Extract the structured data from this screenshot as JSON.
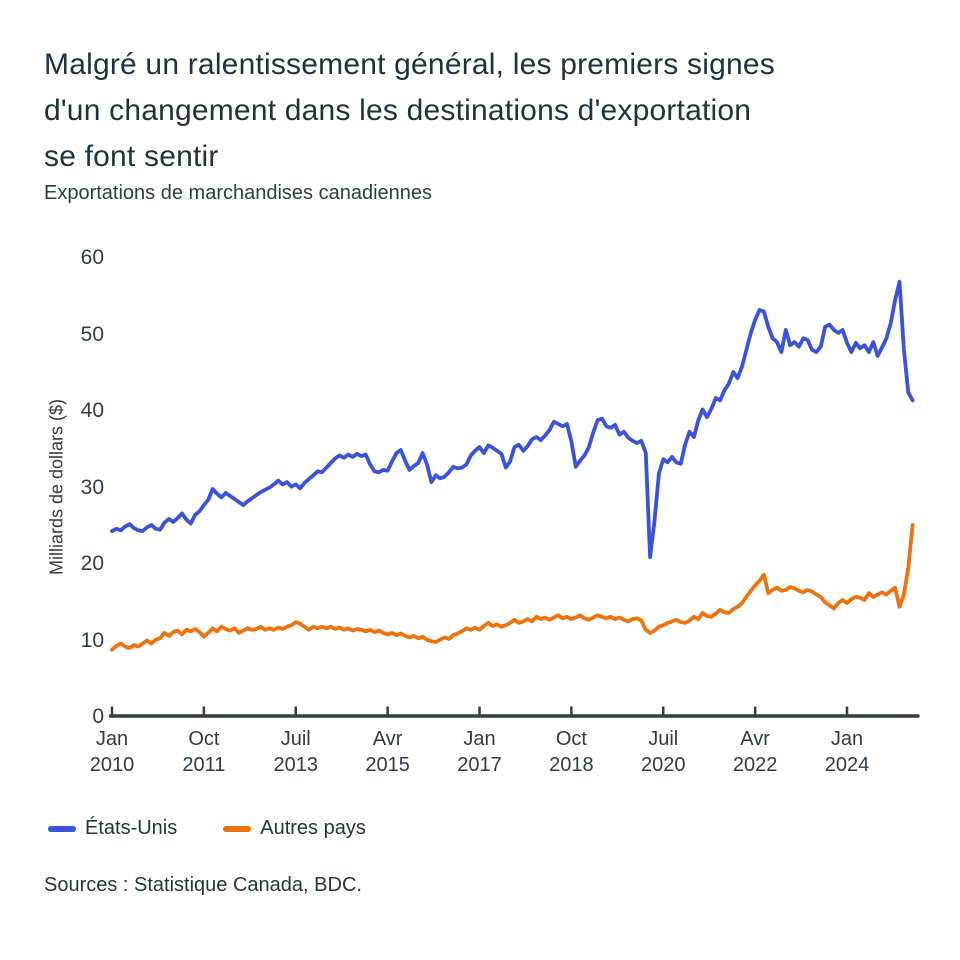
{
  "header": {
    "title_lines": [
      "Malgré un ralentissement général, les premiers signes",
      "d'un changement dans les destinations d'exportation",
      "se font sentir"
    ],
    "subtitle": "Exportations de marchandises canadiennes"
  },
  "chart_data": {
    "type": "line",
    "title": "Malgré un ralentissement général, les premiers signes d'un changement dans les destinations d'exportation se font sentir",
    "subtitle": "Exportations de marchandises canadiennes",
    "ylabel": "Milliards de dollars ($)",
    "xlabel": "",
    "ylim": [
      0,
      60
    ],
    "y_ticks": [
      0,
      10,
      20,
      30,
      40,
      50,
      60
    ],
    "grid": false,
    "legend_position": "bottom-left",
    "x_frequency": "monthly",
    "x_start": "Jan 2010",
    "x_end": "Avr 2025",
    "x_tick_month_indices": [
      0,
      21,
      42,
      63,
      84,
      105,
      126,
      147,
      168
    ],
    "x_tick_labels": [
      [
        "Jan",
        "2010"
      ],
      [
        "Oct",
        "2011"
      ],
      [
        "Juil",
        "2013"
      ],
      [
        "Avr",
        "2015"
      ],
      [
        "Jan",
        "2017"
      ],
      [
        "Oct",
        "2018"
      ],
      [
        "Juil",
        "2020"
      ],
      [
        "Avr",
        "2022"
      ],
      [
        "Jan",
        "2024"
      ]
    ],
    "series": [
      {
        "name": "États-Unis",
        "color": "#3A53D9",
        "values": [
          24.3,
          24.6,
          24.4,
          24.9,
          25.2,
          24.7,
          24.4,
          24.3,
          24.8,
          25.1,
          24.6,
          24.5,
          25.4,
          25.9,
          25.5,
          26.0,
          26.6,
          25.8,
          25.3,
          26.4,
          26.9,
          27.7,
          28.4,
          29.8,
          29.2,
          28.7,
          29.3,
          28.9,
          28.5,
          28.1,
          27.7,
          28.2,
          28.6,
          29.0,
          29.4,
          29.7,
          30.0,
          30.4,
          30.9,
          30.4,
          30.7,
          30.1,
          30.4,
          29.9,
          30.6,
          31.1,
          31.6,
          32.1,
          32.0,
          32.6,
          33.2,
          33.8,
          34.2,
          33.9,
          34.3,
          34.0,
          34.4,
          34.1,
          34.3,
          33.0,
          32.1,
          32.0,
          32.3,
          32.2,
          33.4,
          34.5,
          34.9,
          33.5,
          32.3,
          32.8,
          33.2,
          34.5,
          33.0,
          30.7,
          31.6,
          31.2,
          31.4,
          32.0,
          32.7,
          32.5,
          32.6,
          33.0,
          34.2,
          34.8,
          35.3,
          34.5,
          35.5,
          35.2,
          34.8,
          34.4,
          32.6,
          33.4,
          35.3,
          35.6,
          34.8,
          35.4,
          36.3,
          36.6,
          36.2,
          36.8,
          37.5,
          38.6,
          38.3,
          38.0,
          38.3,
          36.0,
          32.7,
          33.5,
          34.2,
          35.3,
          37.2,
          38.8,
          39.0,
          38.0,
          37.8,
          38.2,
          36.9,
          37.3,
          36.5,
          36.1,
          35.8,
          36.1,
          34.5,
          20.9,
          25.6,
          31.8,
          33.7,
          33.3,
          34.0,
          33.3,
          33.1,
          35.6,
          37.3,
          36.6,
          38.8,
          40.2,
          39.2,
          40.3,
          41.7,
          41.4,
          42.7,
          43.6,
          45.1,
          44.3,
          45.8,
          48.0,
          50.2,
          51.9,
          53.2,
          53.0,
          51.0,
          49.5,
          49.0,
          47.7,
          50.6,
          48.6,
          49.0,
          48.4,
          49.5,
          49.3,
          48.0,
          47.7,
          48.4,
          51.0,
          51.3,
          50.6,
          50.2,
          50.6,
          48.9,
          47.7,
          48.9,
          48.2,
          48.6,
          47.7,
          49.0,
          47.2,
          48.3,
          49.5,
          51.5,
          54.5,
          56.9,
          48.0,
          42.4,
          41.4
        ]
      },
      {
        "name": "Autres pays",
        "color": "#EE720D",
        "values": [
          8.8,
          9.3,
          9.6,
          9.2,
          9.0,
          9.4,
          9.2,
          9.6,
          10.0,
          9.6,
          10.1,
          10.3,
          11.0,
          10.6,
          11.1,
          11.3,
          10.8,
          11.4,
          11.2,
          11.5,
          11.1,
          10.5,
          11.0,
          11.6,
          11.2,
          11.8,
          11.5,
          11.3,
          11.6,
          11.0,
          11.3,
          11.6,
          11.4,
          11.5,
          11.8,
          11.4,
          11.6,
          11.4,
          11.7,
          11.5,
          11.8,
          12.0,
          12.4,
          12.2,
          11.8,
          11.4,
          11.8,
          11.6,
          11.8,
          11.6,
          11.8,
          11.5,
          11.7,
          11.4,
          11.6,
          11.3,
          11.5,
          11.4,
          11.2,
          11.4,
          11.1,
          11.3,
          11.0,
          10.8,
          11.0,
          10.7,
          10.9,
          10.6,
          10.4,
          10.6,
          10.3,
          10.5,
          10.1,
          9.9,
          9.8,
          10.1,
          10.4,
          10.2,
          10.7,
          10.9,
          11.2,
          11.6,
          11.4,
          11.7,
          11.4,
          11.9,
          12.3,
          11.9,
          12.1,
          11.8,
          12.0,
          12.3,
          12.7,
          12.3,
          12.5,
          12.8,
          12.5,
          13.1,
          12.8,
          13.0,
          12.7,
          13.0,
          13.3,
          12.9,
          13.1,
          12.8,
          13.0,
          13.3,
          12.9,
          12.7,
          13.0,
          13.3,
          13.1,
          12.9,
          13.1,
          12.8,
          13.0,
          12.7,
          12.5,
          12.8,
          12.9,
          12.6,
          11.4,
          11.0,
          11.3,
          11.8,
          12.0,
          12.3,
          12.5,
          12.7,
          12.4,
          12.3,
          12.6,
          13.1,
          12.8,
          13.6,
          13.2,
          13.1,
          13.5,
          14.0,
          13.7,
          13.6,
          14.1,
          14.4,
          14.9,
          15.7,
          16.5,
          17.2,
          17.8,
          18.6,
          16.2,
          16.6,
          16.9,
          16.5,
          16.6,
          17.0,
          16.8,
          16.5,
          16.3,
          16.6,
          16.4,
          16.0,
          15.7,
          15.0,
          14.6,
          14.2,
          14.9,
          15.3,
          14.9,
          15.4,
          15.7,
          15.6,
          15.3,
          16.2,
          15.7,
          16.0,
          16.3,
          16.0,
          16.5,
          16.9,
          14.4,
          16.0,
          19.5,
          25.1
        ]
      }
    ],
    "axis_color": "#2F3E48",
    "text_color": "#2C3D49"
  },
  "footer": {
    "sources": "Sources : Statistique Canada, BDC."
  }
}
